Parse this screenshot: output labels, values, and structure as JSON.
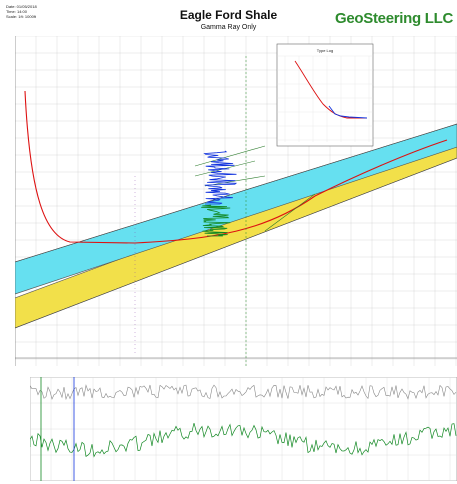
{
  "header": {
    "meta_lines": [
      "Date: 01/05/2018",
      "Time: 14:00",
      "Scale: 1ft: 1000ft"
    ],
    "title": "Eagle Ford Shale",
    "subtitle": "Gamma Ray Only",
    "brand": "GeoSteering LLC"
  },
  "inset": {
    "title": "Type Log"
  },
  "colors": {
    "cyan_band": "#66e0f0",
    "yellow_band": "#f2e04a",
    "wellbore": "#dd1111",
    "gamma_blue": "#1133dd",
    "gamma_green": "#118822",
    "gray_log": "#888888",
    "brand_green": "#2e8b2e"
  }
}
